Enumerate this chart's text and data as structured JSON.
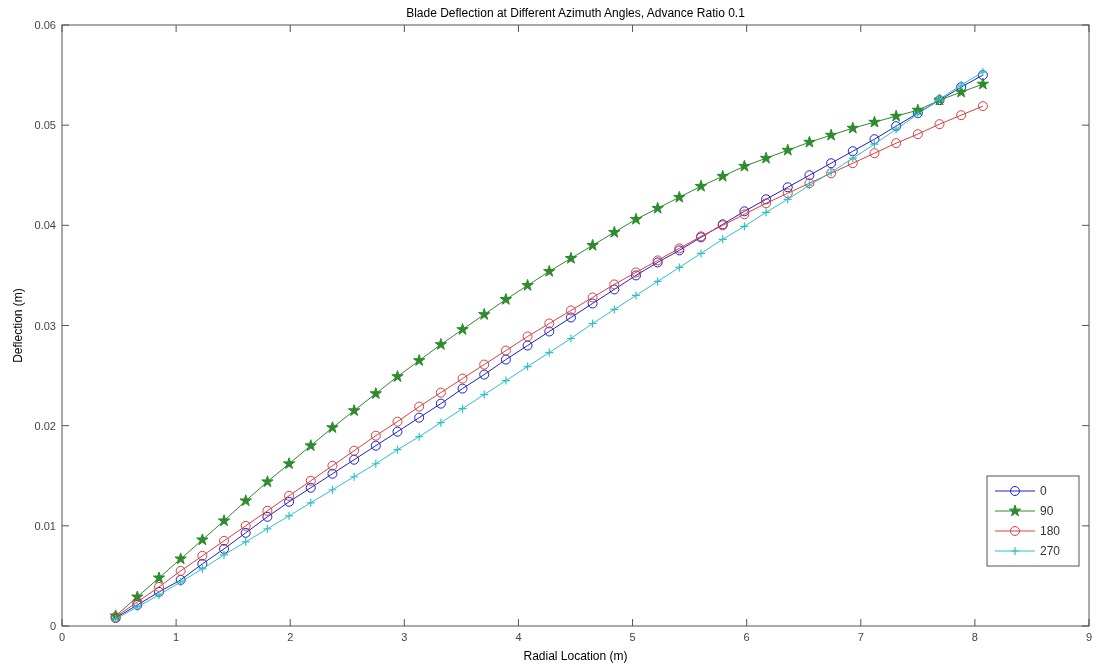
{
  "chart_data": {
    "type": "line",
    "title": "Blade Deflection at Different Azimuth Angles, Advance Ratio 0.1",
    "xlabel": "Radial Location (m)",
    "ylabel": "Deflection (m)",
    "x": [
      0.47,
      0.66,
      0.85,
      1.04,
      1.23,
      1.42,
      1.61,
      1.8,
      1.99,
      2.18,
      2.37,
      2.56,
      2.75,
      2.94,
      3.13,
      3.32,
      3.51,
      3.7,
      3.89,
      4.08,
      4.27,
      4.46,
      4.65,
      4.84,
      5.03,
      5.22,
      5.41,
      5.6,
      5.79,
      5.98,
      6.17,
      6.36,
      6.55,
      6.74,
      6.93,
      7.12,
      7.31,
      7.5,
      7.69,
      7.88,
      8.07
    ],
    "series": [
      {
        "name": "0",
        "color": "#2020c8",
        "marker": "circle",
        "values": [
          0.0008,
          0.0021,
          0.0034,
          0.0046,
          0.0062,
          0.0077,
          0.0093,
          0.0109,
          0.0124,
          0.0138,
          0.0152,
          0.0166,
          0.018,
          0.0194,
          0.0208,
          0.0222,
          0.0237,
          0.0251,
          0.0266,
          0.028,
          0.0294,
          0.0308,
          0.0322,
          0.0336,
          0.035,
          0.0363,
          0.0375,
          0.0388,
          0.0401,
          0.0414,
          0.0426,
          0.0438,
          0.045,
          0.0462,
          0.0474,
          0.0486,
          0.0499,
          0.0512,
          0.0525,
          0.0538,
          0.055
        ]
      },
      {
        "name": "90",
        "color": "#2e8b2e",
        "marker": "star",
        "values": [
          0.001,
          0.0029,
          0.0048,
          0.0067,
          0.0086,
          0.0105,
          0.0125,
          0.0144,
          0.0162,
          0.018,
          0.0198,
          0.0215,
          0.0232,
          0.0249,
          0.0265,
          0.0281,
          0.0296,
          0.0311,
          0.0326,
          0.034,
          0.0354,
          0.0367,
          0.038,
          0.0393,
          0.0406,
          0.0417,
          0.0428,
          0.0439,
          0.0449,
          0.0459,
          0.0467,
          0.0475,
          0.0483,
          0.049,
          0.0497,
          0.0503,
          0.0509,
          0.0515,
          0.0525,
          0.0533,
          0.0541
        ]
      },
      {
        "name": "180",
        "color": "#d84040",
        "marker": "circle",
        "values": [
          0.0009,
          0.0024,
          0.0039,
          0.0055,
          0.007,
          0.0085,
          0.01,
          0.0115,
          0.013,
          0.0145,
          0.016,
          0.0175,
          0.019,
          0.0204,
          0.0219,
          0.0233,
          0.0247,
          0.0261,
          0.0275,
          0.0289,
          0.0302,
          0.0315,
          0.0328,
          0.0341,
          0.0353,
          0.0365,
          0.0377,
          0.0389,
          0.04,
          0.0411,
          0.0422,
          0.0432,
          0.0442,
          0.0452,
          0.0462,
          0.0472,
          0.0482,
          0.0491,
          0.0501,
          0.051,
          0.0519
        ]
      },
      {
        "name": "270",
        "color": "#30c0c8",
        "marker": "cross",
        "values": [
          0.0007,
          0.0019,
          0.0031,
          0.0044,
          0.0057,
          0.0071,
          0.0084,
          0.0097,
          0.011,
          0.0123,
          0.0136,
          0.0149,
          0.0162,
          0.0176,
          0.0189,
          0.0203,
          0.0217,
          0.0231,
          0.0245,
          0.0259,
          0.0273,
          0.0287,
          0.0302,
          0.0316,
          0.033,
          0.0344,
          0.0358,
          0.0372,
          0.0386,
          0.0399,
          0.0413,
          0.0426,
          0.044,
          0.0453,
          0.0467,
          0.0481,
          0.0496,
          0.0511,
          0.0526,
          0.054,
          0.0553
        ]
      }
    ],
    "xlim": [
      0,
      9
    ],
    "xticks": [
      0,
      1,
      2,
      3,
      4,
      5,
      6,
      7,
      8,
      9
    ],
    "ylim": [
      0,
      0.06
    ],
    "yticks": [
      0,
      0.01,
      0.02,
      0.03,
      0.04,
      0.05,
      0.06
    ],
    "grid": false,
    "legend": "bottom right"
  }
}
